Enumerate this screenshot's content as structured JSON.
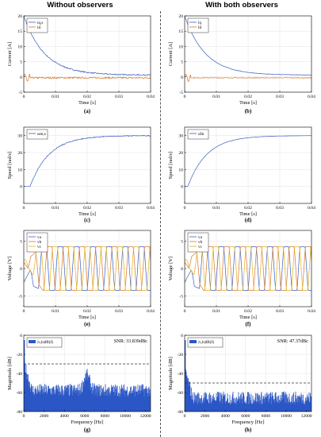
{
  "headers": {
    "left": "Without observers",
    "right": "With both observers"
  },
  "colors": {
    "blue": "#3b5fbf",
    "orange": "#d9762a",
    "yellow": "#e3b21a",
    "purple": "#7d3f9a",
    "green": "#7aa84a",
    "dashed": "#333333",
    "spectrum": "#2a56c6"
  },
  "chart_data": [
    {
      "id": "a",
      "type": "line",
      "label": "(a)",
      "xlabel": "Time [s]",
      "ylabel": "Current [A]",
      "xlim": [
        0,
        0.04
      ],
      "ylim": [
        -5,
        20
      ],
      "xticks": [
        "0",
        "0.01",
        "0.02",
        "0.03",
        "0.04"
      ],
      "xtick_values": [
        0,
        0.01,
        0.02,
        0.03,
        0.04
      ],
      "yticks": [
        "-5",
        "0",
        "5",
        "10",
        "15",
        "20"
      ],
      "ytick_values": [
        -5,
        0,
        5,
        10,
        15,
        20
      ],
      "legend": {
        "position": "top-left",
        "entries": [
          "iq,s",
          "id"
        ]
      },
      "series": [
        {
          "name": "iq,s",
          "color_key": "blue",
          "shape": "decay",
          "start": 20,
          "end": 0.6,
          "tau": 0.0065,
          "noise": 0.35
        },
        {
          "name": "id",
          "color_key": "orange",
          "shape": "flat",
          "value": -0.3,
          "noise": 0.5
        }
      ],
      "grid": true
    },
    {
      "id": "b",
      "type": "line",
      "label": "(b)",
      "xlabel": "Time [s]",
      "ylabel": "Current [A]",
      "xlim": [
        0,
        0.04
      ],
      "ylim": [
        -5,
        20
      ],
      "xticks": [
        "0",
        "0.01",
        "0.02",
        "0.03",
        "0.04"
      ],
      "xtick_values": [
        0,
        0.01,
        0.02,
        0.03,
        0.04
      ],
      "yticks": [
        "-5",
        "0",
        "5",
        "10",
        "15",
        "20"
      ],
      "ytick_values": [
        -5,
        0,
        5,
        10,
        15,
        20
      ],
      "legend": {
        "position": "top-left",
        "entries": [
          "îq",
          "îd"
        ]
      },
      "series": [
        {
          "name": "iq",
          "color_key": "blue",
          "shape": "decay",
          "start": 20,
          "end": 0.6,
          "tau": 0.0065,
          "noise": 0.15
        },
        {
          "name": "id",
          "color_key": "orange",
          "shape": "flat",
          "value": -0.3,
          "noise": 0.2
        }
      ],
      "grid": true
    },
    {
      "id": "c",
      "type": "line",
      "label": "(c)",
      "xlabel": "Time [s]",
      "ylabel": "Speed [rad/s]",
      "xlim": [
        0,
        0.04
      ],
      "ylim": [
        -10,
        35
      ],
      "xticks": [
        "0",
        "0.01",
        "0.02",
        "0.03",
        "0.04"
      ],
      "xtick_values": [
        0,
        0.01,
        0.02,
        0.03,
        0.04
      ],
      "yticks": [
        "0",
        "10",
        "20",
        "30"
      ],
      "ytick_values": [
        0,
        10,
        20,
        30
      ],
      "legend": {
        "position": "top-left",
        "entries": [
          "ωm,s"
        ]
      },
      "series": [
        {
          "name": "ωm,s",
          "color_key": "blue",
          "shape": "rise",
          "delay": 0.002,
          "final": 30,
          "tau": 0.006,
          "noise": 0.5
        }
      ],
      "grid": true
    },
    {
      "id": "d",
      "type": "line",
      "label": "(d)",
      "xlabel": "Time [s]",
      "ylabel": "Speed [rad/s]",
      "xlim": [
        0,
        0.04
      ],
      "ylim": [
        -10,
        35
      ],
      "xticks": [
        "0",
        "0.01",
        "0.02",
        "0.03",
        "0.04"
      ],
      "xtick_values": [
        0,
        0.01,
        0.02,
        0.03,
        0.04
      ],
      "yticks": [
        "0",
        "10",
        "20",
        "30"
      ],
      "ytick_values": [
        0,
        10,
        20,
        30
      ],
      "legend": {
        "position": "top-left",
        "entries": [
          "ω̂m"
        ]
      },
      "series": [
        {
          "name": "ωm",
          "color_key": "blue",
          "shape": "rise",
          "delay": 0.001,
          "final": 30,
          "tau": 0.006,
          "noise": 0.1
        }
      ],
      "grid": true
    },
    {
      "id": "e",
      "type": "line",
      "label": "(e)",
      "xlabel": "Time [s]",
      "ylabel": "Voltage [V]",
      "xlim": [
        0,
        0.04
      ],
      "ylim": [
        -7,
        7
      ],
      "xticks": [
        "0",
        "0.01",
        "0.02",
        "0.03",
        "0.04"
      ],
      "xtick_values": [
        0,
        0.01,
        0.02,
        0.03,
        0.04
      ],
      "yticks": [
        "-5",
        "0",
        "5"
      ],
      "ytick_values": [
        -5,
        0,
        5
      ],
      "legend": {
        "position": "top-left",
        "entries": [
          "va",
          "vb",
          "vc"
        ]
      },
      "series": [
        {
          "name": "va",
          "color_key": "blue",
          "shape": "trap",
          "phase": 0
        },
        {
          "name": "vb",
          "color_key": "orange",
          "shape": "trap",
          "phase": 2.094
        },
        {
          "name": "vc",
          "color_key": "yellow",
          "shape": "trap",
          "phase": 4.189
        }
      ],
      "grid": true
    },
    {
      "id": "f",
      "type": "line",
      "label": "(f)",
      "xlabel": "Time [s]",
      "ylabel": "Voltage [V]",
      "xlim": [
        0,
        0.04
      ],
      "ylim": [
        -7,
        7
      ],
      "xticks": [
        "0",
        "0.01",
        "0.02",
        "0.03",
        "0.04"
      ],
      "xtick_values": [
        0,
        0.01,
        0.02,
        0.03,
        0.04
      ],
      "yticks": [
        "-5",
        "0",
        "5"
      ],
      "ytick_values": [
        -5,
        0,
        5
      ],
      "legend": {
        "position": "top-left",
        "entries": [
          "va",
          "vb",
          "vc"
        ]
      },
      "series": [
        {
          "name": "va",
          "color_key": "blue",
          "shape": "trap",
          "phase": 0
        },
        {
          "name": "vb",
          "color_key": "orange",
          "shape": "trap",
          "phase": 2.094
        },
        {
          "name": "vc",
          "color_key": "yellow",
          "shape": "trap",
          "phase": 4.189
        }
      ],
      "grid": true
    },
    {
      "id": "g",
      "type": "area",
      "label": "(g)",
      "xlabel": "Frequency [Hz]",
      "ylabel": "Magnitude [dB]",
      "xlim": [
        0,
        12500
      ],
      "ylim": [
        -80,
        0
      ],
      "xticks": [
        "0",
        "2000",
        "4000",
        "6000",
        "8000",
        "10000",
        "12000"
      ],
      "xtick_values": [
        0,
        2000,
        4000,
        6000,
        8000,
        10000,
        12000
      ],
      "yticks": [
        "-80",
        "-60",
        "-40",
        "-20",
        "0"
      ],
      "ytick_values": [
        -80,
        -60,
        -40,
        -20,
        0
      ],
      "legend": {
        "position": "top-left",
        "entries": [
          "|vₐb|dB(f)"
        ]
      },
      "annotation": "SNR: 33.839dBc",
      "threshold": -30,
      "spectrum": {
        "floor": -62,
        "spike_f": 50,
        "spike_top": -5,
        "bump_center": 6200,
        "bump_height": 16,
        "bump_width": 400
      },
      "grid": true
    },
    {
      "id": "h",
      "type": "area",
      "label": "(h)",
      "xlabel": "Frequency [Hz]",
      "ylabel": "Magnitude [dB]",
      "xlim": [
        0,
        12500
      ],
      "ylim": [
        -80,
        0
      ],
      "xticks": [
        "0",
        "2000",
        "4000",
        "6000",
        "8000",
        "10000",
        "12000"
      ],
      "xtick_values": [
        0,
        2000,
        4000,
        6000,
        8000,
        10000,
        12000
      ],
      "yticks": [
        "-80",
        "-60",
        "-40",
        "-20",
        "0"
      ],
      "ytick_values": [
        -80,
        -60,
        -40,
        -20,
        0
      ],
      "legend": {
        "position": "top-left",
        "entries": [
          "|vₐb|dB(f)"
        ]
      },
      "annotation": "SNR: 47.37dBc",
      "threshold": -50,
      "spectrum": {
        "floor": -70,
        "spike_f": 50,
        "spike_top": -5,
        "bump_center": 6200,
        "bump_height": 0,
        "bump_width": 400
      },
      "grid": true
    }
  ]
}
